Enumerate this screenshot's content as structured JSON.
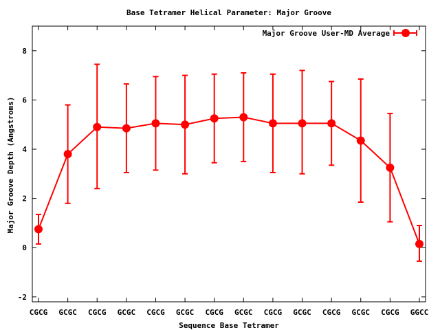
{
  "chart_data": {
    "type": "line",
    "title": "Base Tetramer Helical Parameter: Major Groove",
    "xlabel": "Sequence Base Tetramer",
    "ylabel": "Major Groove Depth (Angstroms)",
    "categories": [
      "CGCG",
      "GCGC",
      "CGCG",
      "GCGC",
      "CGCG",
      "GCGC",
      "CGCG",
      "GCGC",
      "CGCG",
      "GCGC",
      "CGCG",
      "GCGC",
      "CGCG",
      "GGCC"
    ],
    "ylim": [
      -2.2,
      9
    ],
    "yticks": [
      -2,
      0,
      2,
      4,
      6,
      8
    ],
    "grid": false,
    "legend_position": "top-right",
    "series": [
      {
        "name": "Major Groove User-MD Average",
        "color": "#ff0000",
        "values": [
          0.75,
          3.8,
          4.9,
          4.85,
          5.05,
          5.0,
          5.25,
          5.3,
          5.05,
          5.05,
          5.05,
          4.35,
          3.25,
          0.15
        ],
        "err_low": [
          0.15,
          1.8,
          2.4,
          3.05,
          3.15,
          3.0,
          3.45,
          3.5,
          3.05,
          3.0,
          3.35,
          1.85,
          1.05,
          -0.55
        ],
        "err_high": [
          1.35,
          5.8,
          7.45,
          6.65,
          6.95,
          7.0,
          7.05,
          7.1,
          7.05,
          7.2,
          6.75,
          6.85,
          5.45,
          0.9
        ]
      }
    ]
  }
}
